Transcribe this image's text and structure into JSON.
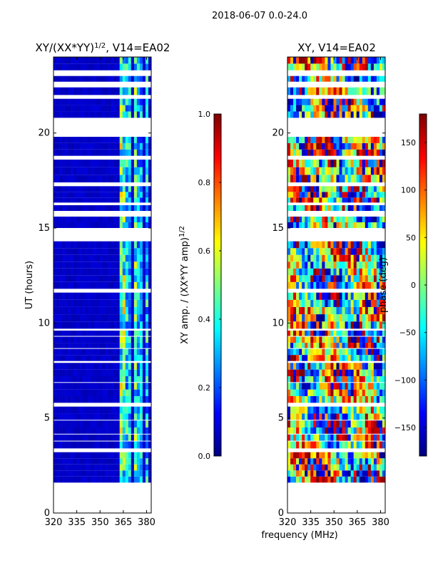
{
  "figure": {
    "suptitle": "2018-06-07 0.0-24.0",
    "shared_xlabel": "frequency (MHz)"
  },
  "colors": {
    "blank": "#ffffff",
    "axis": "#000000"
  },
  "chart_data": [
    {
      "type": "heatmap",
      "title": "XY/(XX*YY)",
      "title_exponent": "1/2",
      "title_suffix": ", V14=EA02",
      "xlabel": "",
      "ylabel": "UT (hours)",
      "xlim": [
        320,
        383
      ],
      "ylim": [
        0,
        24
      ],
      "xticks": [
        320,
        335,
        350,
        365,
        380
      ],
      "xtick_labels": [
        "320",
        "335",
        "350",
        "365",
        "380"
      ],
      "yticks": [
        0,
        5,
        10,
        15,
        20
      ],
      "ytick_labels": [
        "0",
        "5",
        "10",
        "15",
        "20"
      ],
      "colormap": "jet",
      "colorbar": {
        "label": "XY amp. / (XX*YY amp)",
        "label_exponent": "1/2",
        "range": [
          0.0,
          1.0
        ],
        "ticks": [
          0.0,
          0.2,
          0.4,
          0.6,
          0.8,
          1.0
        ],
        "tick_labels": [
          "0.0",
          "0.2",
          "0.4",
          "0.6",
          "0.8",
          "1.0"
        ]
      },
      "data_bands_ut": [
        [
          1.6,
          3.2
        ],
        [
          3.4,
          5.6
        ],
        [
          5.8,
          7.9
        ],
        [
          8.0,
          9.6
        ],
        [
          9.7,
          11.6
        ],
        [
          11.8,
          14.3
        ],
        [
          15.0,
          15.6
        ],
        [
          15.9,
          16.2
        ],
        [
          16.3,
          17.2
        ],
        [
          17.4,
          18.6
        ],
        [
          18.8,
          19.8
        ],
        [
          20.8,
          21.8
        ],
        [
          22.0,
          22.4
        ],
        [
          22.7,
          23.0
        ],
        [
          23.3,
          24.0
        ]
      ],
      "value_model": {
        "background": 0.05,
        "bright_channels_mhz": [
          [
            363,
            366,
            0.55
          ],
          [
            367,
            370,
            0.4
          ],
          [
            371,
            373,
            0.5
          ],
          [
            374,
            377,
            0.35
          ],
          [
            379,
            381,
            0.4
          ]
        ]
      }
    },
    {
      "type": "heatmap",
      "title": "XY, V14=EA02",
      "xlabel": "frequency (MHz)",
      "ylabel": "",
      "xlim": [
        320,
        383
      ],
      "ylim": [
        0,
        24
      ],
      "xticks": [
        320,
        335,
        350,
        365,
        380
      ],
      "xtick_labels": [
        "320",
        "335",
        "350",
        "365",
        "380"
      ],
      "yticks": [
        0,
        5,
        10,
        15,
        20
      ],
      "ytick_labels": [
        "0",
        "5",
        "10",
        "15",
        "20"
      ],
      "colormap": "jet",
      "colorbar": {
        "label": "phase (deg)",
        "range": [
          -180,
          180
        ],
        "ticks": [
          -150,
          -100,
          -50,
          0,
          50,
          100,
          150
        ],
        "tick_labels": [
          "−150",
          "−100",
          "−50",
          "0",
          "50",
          "100",
          "150"
        ]
      },
      "data_bands_ut": [
        [
          1.6,
          3.2
        ],
        [
          3.4,
          5.6
        ],
        [
          5.8,
          7.9
        ],
        [
          8.0,
          9.6
        ],
        [
          9.7,
          11.6
        ],
        [
          11.8,
          14.3
        ],
        [
          15.0,
          15.6
        ],
        [
          15.9,
          16.2
        ],
        [
          16.3,
          17.2
        ],
        [
          17.4,
          18.6
        ],
        [
          18.8,
          19.8
        ],
        [
          20.8,
          21.8
        ],
        [
          22.0,
          22.4
        ],
        [
          22.7,
          23.0
        ],
        [
          23.3,
          24.0
        ]
      ],
      "value_model": {
        "phase_range_deg": [
          -180,
          180
        ]
      }
    }
  ]
}
